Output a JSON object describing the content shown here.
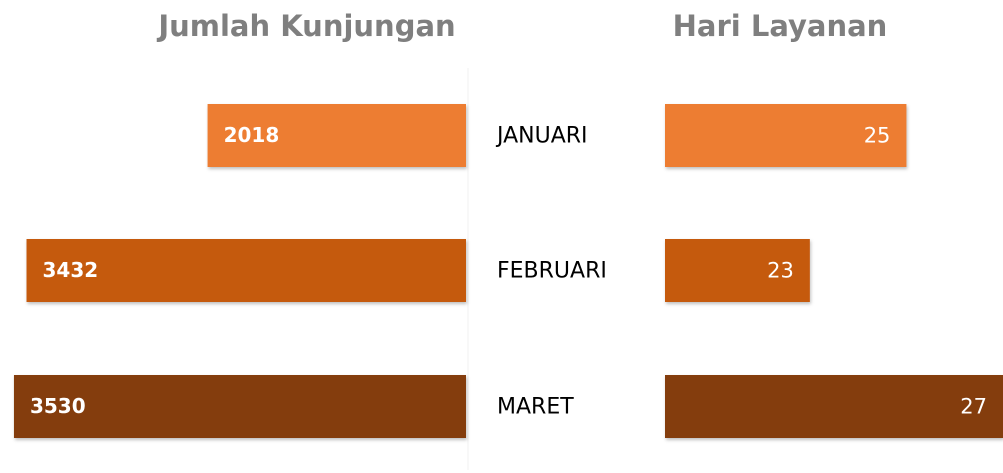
{
  "chart_data": {
    "type": "butterfly-bar",
    "categories": [
      "JANUARI",
      "FEBRUARI",
      "MARET"
    ],
    "colors": [
      "#ed7d31",
      "#c55a11",
      "#843c0c"
    ],
    "series": [
      {
        "name": "Jumlah Kunjungan",
        "values": [
          2018,
          3432,
          3530
        ],
        "xlim": [
          0,
          3600
        ]
      },
      {
        "name": "Hari Layanan",
        "values": [
          25,
          23,
          27
        ],
        "xlim": [
          20,
          27
        ]
      }
    ]
  }
}
